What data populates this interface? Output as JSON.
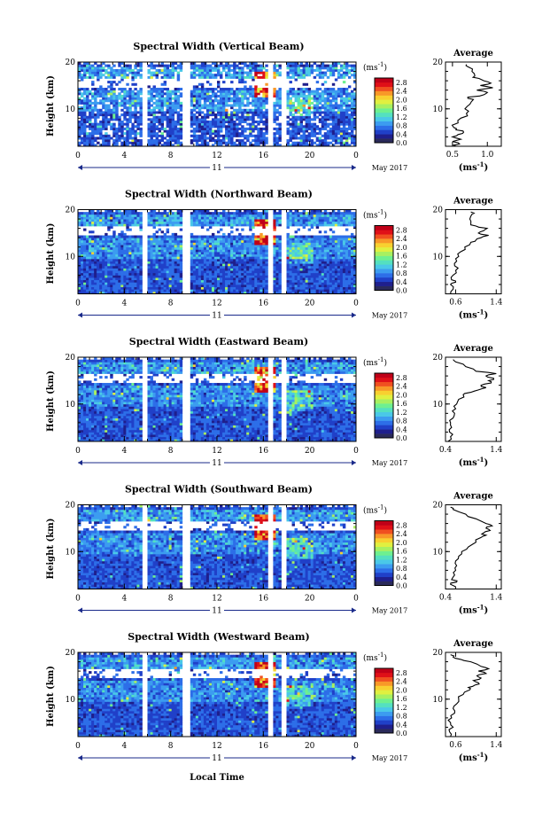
{
  "chart_data": {
    "type": "heatmap",
    "panels": [
      {
        "title": "Spectral Width (Vertical Beam)",
        "avg_title": "Average",
        "avg_xticks": [
          "0.5",
          "1.0"
        ],
        "avg_xlim": [
          0.4,
          1.2
        ],
        "avg_profile": [
          [
            2,
            0.55
          ],
          [
            2.5,
            0.6
          ],
          [
            3,
            0.5
          ],
          [
            3.5,
            0.62
          ],
          [
            4,
            0.5
          ],
          [
            4.5,
            0.58
          ],
          [
            5,
            0.66
          ],
          [
            5.5,
            0.55
          ],
          [
            6,
            0.52
          ],
          [
            7,
            0.58
          ],
          [
            8,
            0.62
          ],
          [
            9,
            0.7
          ],
          [
            10,
            0.68
          ],
          [
            11,
            0.75
          ],
          [
            12,
            0.8
          ],
          [
            12.5,
            0.72
          ],
          [
            13,
            0.95
          ],
          [
            13.5,
            1.0
          ],
          [
            14,
            0.85
          ],
          [
            14.5,
            1.08
          ],
          [
            15,
            0.9
          ],
          [
            15.5,
            1.05
          ],
          [
            16,
            0.95
          ],
          [
            16.5,
            0.88
          ],
          [
            17,
            0.82
          ],
          [
            18,
            0.78
          ],
          [
            19,
            0.72
          ],
          [
            19.5,
            0.7
          ]
        ]
      },
      {
        "title": "Spectral Width (Northward Beam)",
        "avg_title": "Average",
        "avg_xticks": [
          "0.6",
          "1.4"
        ],
        "avg_xlim": [
          0.4,
          1.5
        ],
        "avg_profile": [
          [
            2,
            0.5
          ],
          [
            3,
            0.55
          ],
          [
            4,
            0.5
          ],
          [
            4.5,
            0.6
          ],
          [
            5,
            0.52
          ],
          [
            6,
            0.55
          ],
          [
            7,
            0.6
          ],
          [
            8,
            0.58
          ],
          [
            9,
            0.62
          ],
          [
            10,
            0.66
          ],
          [
            11,
            0.7
          ],
          [
            12,
            0.78
          ],
          [
            13,
            0.9
          ],
          [
            13.5,
            1.0
          ],
          [
            14,
            1.1
          ],
          [
            14.5,
            1.25
          ],
          [
            15,
            1.05
          ],
          [
            15.5,
            1.15
          ],
          [
            16,
            1.22
          ],
          [
            16.5,
            1.0
          ],
          [
            17,
            0.9
          ],
          [
            18,
            0.88
          ],
          [
            19,
            0.92
          ],
          [
            19.5,
            0.9
          ]
        ]
      },
      {
        "title": "Spectral Width (Eastward Beam)",
        "avg_title": "Average",
        "avg_xticks": [
          "0.4",
          "1.4"
        ],
        "avg_xlim": [
          0.4,
          1.5
        ],
        "avg_profile": [
          [
            2,
            0.45
          ],
          [
            3,
            0.5
          ],
          [
            4,
            0.48
          ],
          [
            5,
            0.52
          ],
          [
            6,
            0.5
          ],
          [
            7,
            0.55
          ],
          [
            8,
            0.58
          ],
          [
            9,
            0.6
          ],
          [
            10,
            0.62
          ],
          [
            11,
            0.66
          ],
          [
            12,
            0.75
          ],
          [
            12.5,
            0.9
          ],
          [
            13,
            1.05
          ],
          [
            13.5,
            1.2
          ],
          [
            14,
            1.1
          ],
          [
            14.5,
            1.3
          ],
          [
            15,
            1.25
          ],
          [
            15.5,
            1.35
          ],
          [
            16,
            1.2
          ],
          [
            16.5,
            1.4
          ],
          [
            17,
            1.0
          ],
          [
            18,
            0.8
          ],
          [
            19,
            0.6
          ],
          [
            19.5,
            0.55
          ]
        ]
      },
      {
        "title": "Spectral Width (Southward Beam)",
        "avg_title": "Average",
        "avg_xticks": [
          "0.4",
          "1.4"
        ],
        "avg_xlim": [
          0.4,
          1.5
        ],
        "avg_profile": [
          [
            2,
            0.6
          ],
          [
            3,
            0.5
          ],
          [
            3.5,
            0.62
          ],
          [
            4,
            0.52
          ],
          [
            5,
            0.58
          ],
          [
            6,
            0.6
          ],
          [
            7,
            0.62
          ],
          [
            8,
            0.6
          ],
          [
            9,
            0.66
          ],
          [
            10,
            0.72
          ],
          [
            11,
            0.85
          ],
          [
            12,
            1.0
          ],
          [
            13,
            1.1
          ],
          [
            13.5,
            1.2
          ],
          [
            14,
            1.15
          ],
          [
            14.5,
            1.28
          ],
          [
            15,
            1.2
          ],
          [
            15.5,
            1.32
          ],
          [
            16,
            1.2
          ],
          [
            17,
            1.0
          ],
          [
            18,
            0.8
          ],
          [
            19,
            0.55
          ],
          [
            19.5,
            0.5
          ]
        ]
      },
      {
        "title": "Spectral Width (Westward Beam)",
        "avg_title": "Average",
        "avg_xticks": [
          "0.6",
          "1.4"
        ],
        "avg_xlim": [
          0.4,
          1.5
        ],
        "avg_profile": [
          [
            2,
            0.5
          ],
          [
            3,
            0.48
          ],
          [
            4,
            0.55
          ],
          [
            5,
            0.5
          ],
          [
            6,
            0.52
          ],
          [
            7,
            0.58
          ],
          [
            8,
            0.55
          ],
          [
            9,
            0.62
          ],
          [
            10,
            0.66
          ],
          [
            11,
            0.75
          ],
          [
            12,
            0.88
          ],
          [
            12.5,
            0.85
          ],
          [
            13,
            0.98
          ],
          [
            13.5,
            1.05
          ],
          [
            14,
            0.95
          ],
          [
            14.5,
            1.1
          ],
          [
            15,
            1.02
          ],
          [
            15.5,
            1.2
          ],
          [
            16,
            1.05
          ],
          [
            16.5,
            1.25
          ],
          [
            17,
            1.1
          ],
          [
            18,
            0.9
          ],
          [
            18.5,
            0.7
          ],
          [
            19,
            0.55
          ],
          [
            19.5,
            0.5
          ]
        ]
      }
    ],
    "ylabel": "Height (km)",
    "xlabel": "Local Time",
    "ylim": [
      2,
      20
    ],
    "xlim": [
      0,
      24
    ],
    "y_ticks": [
      10,
      20
    ],
    "x_ticks": [
      "0",
      "4",
      "8",
      "12",
      "16",
      "20",
      "0"
    ],
    "day_label": "11",
    "date_label": "May 2017",
    "colorbar": {
      "unit": "(ms",
      "unit_exp": "-1",
      "unit_close": ")",
      "labels": [
        "2.8",
        "2.4",
        "2.0",
        "1.6",
        "1.2",
        "0.8",
        "0.4",
        "0.0"
      ],
      "range": [
        0.0,
        3.0
      ],
      "colors": [
        "#2a2a5a",
        "#1f1f8c",
        "#2040c8",
        "#2d6ee8",
        "#3c9cf0",
        "#4ac8e8",
        "#54e0c0",
        "#6ef090",
        "#a8f060",
        "#e0f040",
        "#f8d030",
        "#f89828",
        "#f05020",
        "#e01018",
        "#c00018"
      ]
    },
    "avg_xlabel": "(ms",
    "avg_xlabel_exp": "-1",
    "avg_xlabel_close": ")",
    "data_gaps_hours": [
      [
        5.7,
        6.0
      ],
      [
        9.2,
        9.5
      ],
      [
        16.4,
        16.7
      ],
      [
        17.6,
        17.9
      ]
    ]
  }
}
